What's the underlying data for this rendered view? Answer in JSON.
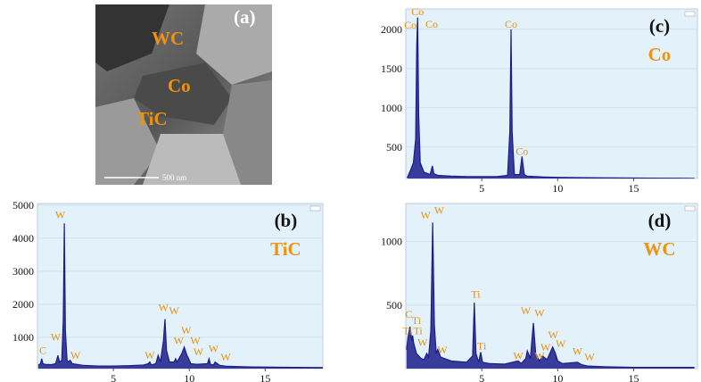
{
  "image_panel": {
    "label": "(a)",
    "phases": [
      "WC",
      "Co",
      "TiC"
    ],
    "scale_bar": "500 nm"
  },
  "chart_data": [
    {
      "type": "line",
      "panel_label": "(b)",
      "phase_label": "TiC",
      "color": "#1c1c8a",
      "grid": true,
      "x": [
        0.05,
        0.2,
        0.28,
        0.36,
        0.5,
        0.9,
        1.2,
        1.35,
        1.45,
        1.6,
        1.7,
        1.77,
        1.84,
        1.95,
        2.05,
        2.15,
        2.3,
        3,
        4,
        5,
        6,
        7,
        7.3,
        7.4,
        7.5,
        7.8,
        7.95,
        8.1,
        8.3,
        8.4,
        8.5,
        8.7,
        9.0,
        9.1,
        9.2,
        9.5,
        9.67,
        9.85,
        9.96,
        10.1,
        10.5,
        11.2,
        11.3,
        11.4,
        11.6,
        11.7,
        12.0,
        12.5,
        14,
        16,
        18.8
      ],
      "values": [
        150,
        200,
        350,
        200,
        180,
        170,
        200,
        450,
        250,
        300,
        1500,
        4450,
        1200,
        300,
        250,
        300,
        200,
        150,
        130,
        130,
        140,
        160,
        200,
        250,
        160,
        200,
        450,
        250,
        900,
        1550,
        600,
        250,
        250,
        350,
        250,
        500,
        700,
        450,
        350,
        200,
        180,
        200,
        350,
        180,
        160,
        250,
        150,
        120,
        100,
        90,
        80
      ],
      "xlim": [
        0,
        18.8
      ],
      "xticks": [
        5,
        10,
        15
      ],
      "ylim": [
        50,
        5050
      ],
      "yticks": [
        1000,
        2000,
        3000,
        4000,
        5000
      ],
      "annotations": [
        {
          "text": "C",
          "x": 0.35,
          "y": 500
        },
        {
          "text": "W",
          "x": 1.2,
          "y": 900
        },
        {
          "text": "W",
          "x": 1.5,
          "y": 4600
        },
        {
          "text": "W",
          "x": 2.5,
          "y": 350
        },
        {
          "text": "W",
          "x": 7.4,
          "y": 350
        },
        {
          "text": "W",
          "x": 8.3,
          "y": 1800
        },
        {
          "text": "W",
          "x": 9.0,
          "y": 1700
        },
        {
          "text": "W",
          "x": 9.3,
          "y": 800
        },
        {
          "text": "W",
          "x": 9.8,
          "y": 1100
        },
        {
          "text": "W",
          "x": 10.4,
          "y": 800
        },
        {
          "text": "W",
          "x": 10.6,
          "y": 450
        },
        {
          "text": "W",
          "x": 11.6,
          "y": 550
        },
        {
          "text": "W",
          "x": 12.4,
          "y": 300
        }
      ]
    },
    {
      "type": "line",
      "panel_label": "(c)",
      "phase_label": "Co",
      "color": "#1c1c8a",
      "grid": true,
      "x": [
        0.1,
        0.3,
        0.5,
        0.65,
        0.72,
        0.78,
        0.85,
        0.95,
        1.2,
        1.6,
        1.75,
        1.85,
        2.1,
        3,
        4,
        5,
        6,
        6.7,
        6.85,
        6.93,
        7.0,
        7.15,
        7.5,
        7.65,
        7.8,
        8,
        9,
        10,
        12,
        14,
        16,
        19
      ],
      "values": [
        110,
        200,
        300,
        600,
        1800,
        2150,
        900,
        300,
        180,
        150,
        260,
        160,
        140,
        130,
        125,
        125,
        125,
        140,
        700,
        2000,
        700,
        150,
        150,
        380,
        150,
        130,
        120,
        115,
        110,
        108,
        105,
        102
      ],
      "xlim": [
        0,
        19.2
      ],
      "xticks": [
        5,
        10,
        15
      ],
      "ylim": [
        100,
        2260
      ],
      "yticks": [
        500,
        1000,
        1500,
        2000
      ],
      "annotations": [
        {
          "text": "Co",
          "x": 0.78,
          "y": 2180
        },
        {
          "text": "Co",
          "x": 0.3,
          "y": 2010
        },
        {
          "text": "Co",
          "x": 1.7,
          "y": 2020
        },
        {
          "text": "Co",
          "x": 6.93,
          "y": 2020
        },
        {
          "text": "Co",
          "x": 7.65,
          "y": 400
        }
      ]
    },
    {
      "type": "line",
      "panel_label": "(d)",
      "phase_label": "WC",
      "color": "#1c1c8a",
      "grid": true,
      "x": [
        0.05,
        0.15,
        0.28,
        0.4,
        0.45,
        0.52,
        0.7,
        1.0,
        1.2,
        1.38,
        1.5,
        1.65,
        1.77,
        1.88,
        2.0,
        2.1,
        2.3,
        3,
        4,
        4.4,
        4.51,
        4.62,
        4.8,
        4.93,
        5.05,
        5.5,
        6.5,
        7.4,
        7.6,
        7.9,
        8.0,
        8.2,
        8.4,
        8.55,
        8.8,
        9.0,
        9.3,
        9.67,
        9.85,
        10.0,
        10.3,
        11.3,
        11.6,
        12.0,
        13,
        15,
        17,
        19
      ],
      "values": [
        150,
        250,
        330,
        220,
        260,
        200,
        120,
        80,
        70,
        120,
        90,
        300,
        1150,
        350,
        120,
        150,
        90,
        60,
        50,
        100,
        520,
        120,
        50,
        130,
        50,
        40,
        35,
        60,
        40,
        80,
        140,
        80,
        360,
        120,
        60,
        100,
        70,
        170,
        120,
        60,
        40,
        50,
        30,
        20,
        15,
        10,
        10,
        10
      ],
      "xlim": [
        0,
        19.2
      ],
      "xticks": [
        5,
        10,
        15
      ],
      "ylim": [
        0,
        1300
      ],
      "yticks": [
        500,
        1000
      ],
      "annotations": [
        {
          "text": "W",
          "x": 1.3,
          "y": 1180
        },
        {
          "text": "W",
          "x": 2.2,
          "y": 1220
        },
        {
          "text": "Ti",
          "x": 4.6,
          "y": 560
        },
        {
          "text": "C",
          "x": 0.2,
          "y": 400
        },
        {
          "text": "Ti",
          "x": 0.7,
          "y": 350
        },
        {
          "text": "Ti",
          "x": 0.1,
          "y": 270
        },
        {
          "text": "Ti",
          "x": 0.8,
          "y": 270
        },
        {
          "text": "W",
          "x": 1.1,
          "y": 180
        },
        {
          "text": "W",
          "x": 2.4,
          "y": 120
        },
        {
          "text": "Ti",
          "x": 5.0,
          "y": 150
        },
        {
          "text": "W",
          "x": 7.4,
          "y": 75
        },
        {
          "text": "W",
          "x": 7.9,
          "y": 430
        },
        {
          "text": "W",
          "x": 8.8,
          "y": 410
        },
        {
          "text": "W",
          "x": 8.8,
          "y": 75
        },
        {
          "text": "W",
          "x": 9.2,
          "y": 140
        },
        {
          "text": "W",
          "x": 9.7,
          "y": 240
        },
        {
          "text": "W",
          "x": 10.2,
          "y": 170
        },
        {
          "text": "W",
          "x": 11.3,
          "y": 110
        },
        {
          "text": "W",
          "x": 12.1,
          "y": 65
        }
      ]
    }
  ]
}
